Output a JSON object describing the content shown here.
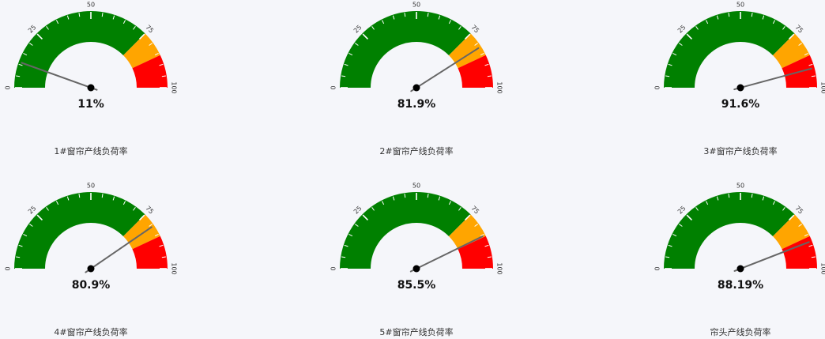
{
  "chart_data": [
    {
      "type": "gauge",
      "title": "1#窗帘产线负荷率",
      "value": 11,
      "value_text": "11%",
      "min": 0,
      "max": 100,
      "tick_labels": [
        "0",
        "25",
        "50",
        "75",
        "100"
      ],
      "bands": [
        {
          "from": 0,
          "to": 75,
          "color": "#008000"
        },
        {
          "from": 75,
          "to": 86,
          "color": "#ffa500"
        },
        {
          "from": 86,
          "to": 100,
          "color": "#ff0000"
        }
      ]
    },
    {
      "type": "gauge",
      "title": "2#窗帘产线负荷率",
      "value": 81.9,
      "value_text": "81.9%",
      "min": 0,
      "max": 100,
      "tick_labels": [
        "0",
        "25",
        "50",
        "75",
        "100"
      ],
      "bands": [
        {
          "from": 0,
          "to": 75,
          "color": "#008000"
        },
        {
          "from": 75,
          "to": 86,
          "color": "#ffa500"
        },
        {
          "from": 86,
          "to": 100,
          "color": "#ff0000"
        }
      ]
    },
    {
      "type": "gauge",
      "title": "3#窗帘产线负荷率",
      "value": 91.6,
      "value_text": "91.6%",
      "min": 0,
      "max": 100,
      "tick_labels": [
        "0",
        "25",
        "50",
        "75",
        "100"
      ],
      "bands": [
        {
          "from": 0,
          "to": 75,
          "color": "#008000"
        },
        {
          "from": 75,
          "to": 86,
          "color": "#ffa500"
        },
        {
          "from": 86,
          "to": 100,
          "color": "#ff0000"
        }
      ]
    },
    {
      "type": "gauge",
      "title": "4#窗帘产线负荷率",
      "value": 80.9,
      "value_text": "80.9%",
      "min": 0,
      "max": 100,
      "tick_labels": [
        "0",
        "25",
        "50",
        "75",
        "100"
      ],
      "bands": [
        {
          "from": 0,
          "to": 75,
          "color": "#008000"
        },
        {
          "from": 75,
          "to": 86,
          "color": "#ffa500"
        },
        {
          "from": 86,
          "to": 100,
          "color": "#ff0000"
        }
      ]
    },
    {
      "type": "gauge",
      "title": "5#窗帘产线负荷率",
      "value": 85.5,
      "value_text": "85.5%",
      "min": 0,
      "max": 100,
      "tick_labels": [
        "0",
        "25",
        "50",
        "75",
        "100"
      ],
      "bands": [
        {
          "from": 0,
          "to": 75,
          "color": "#008000"
        },
        {
          "from": 75,
          "to": 86,
          "color": "#ffa500"
        },
        {
          "from": 86,
          "to": 100,
          "color": "#ff0000"
        }
      ]
    },
    {
      "type": "gauge",
      "title": "帘头产线负荷率",
      "value": 88.19,
      "value_text": "88.19%",
      "min": 0,
      "max": 100,
      "tick_labels": [
        "0",
        "25",
        "50",
        "75",
        "100"
      ],
      "bands": [
        {
          "from": 0,
          "to": 75,
          "color": "#008000"
        },
        {
          "from": 75,
          "to": 86,
          "color": "#ffa500"
        },
        {
          "from": 86,
          "to": 100,
          "color": "#ff0000"
        }
      ]
    }
  ]
}
